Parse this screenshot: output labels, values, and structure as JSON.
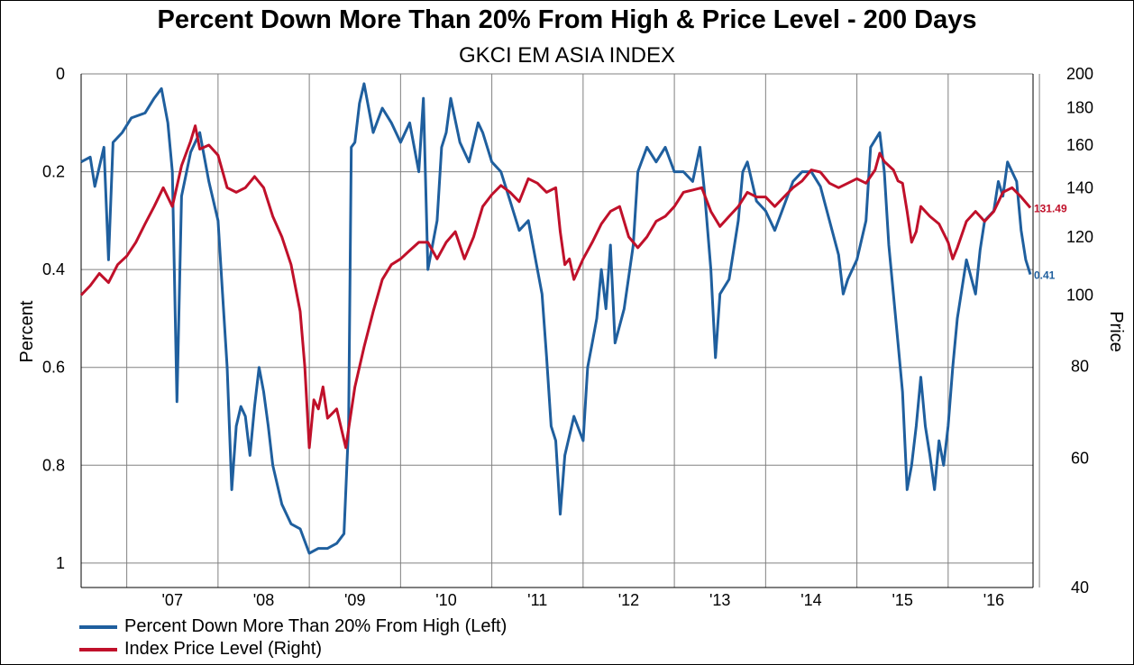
{
  "title": "Percent Down More Than 20% From High & Price Level - 200 Days",
  "subtitle": "GKCI EM ASIA INDEX",
  "colors": {
    "pct_series": "#1f5f9e",
    "price_series": "#c0102a",
    "grid": "#808080"
  },
  "chart_data": {
    "type": "line",
    "title": "Percent Down More Than 20% From High & Price Level - 200 Days",
    "subtitle": "GKCI EM ASIA INDEX",
    "ylabel": "Percent",
    "y2label": "Price",
    "ylim": [
      0,
      1.05
    ],
    "y_inverted": true,
    "y_ticks": [
      "0",
      "0.2",
      "0.4",
      "0.6",
      "0.8",
      "1"
    ],
    "y2_scale": "log",
    "y2lim": [
      40,
      200
    ],
    "y2_ticks": [
      "40",
      "60",
      "80",
      "100",
      "120",
      "140",
      "160",
      "180",
      "200"
    ],
    "x_ticks": [
      "'07",
      "'08",
      "'09",
      "'10",
      "'11",
      "'12",
      "'13",
      "'14",
      "'15",
      "'16"
    ],
    "xlim": [
      2006.5,
      2016.93
    ],
    "grid": true,
    "legend_position": "bottom-left",
    "series": [
      {
        "name": "Percent Down More Than 20% From High (Left)",
        "axis": "left",
        "end_label": "0.41",
        "points": [
          [
            2006.5,
            0.18
          ],
          [
            2006.6,
            0.17
          ],
          [
            2006.65,
            0.23
          ],
          [
            2006.75,
            0.15
          ],
          [
            2006.8,
            0.38
          ],
          [
            2006.85,
            0.14
          ],
          [
            2006.95,
            0.12
          ],
          [
            2007.05,
            0.09
          ],
          [
            2007.2,
            0.08
          ],
          [
            2007.3,
            0.05
          ],
          [
            2007.38,
            0.03
          ],
          [
            2007.45,
            0.1
          ],
          [
            2007.5,
            0.2
          ],
          [
            2007.55,
            0.67
          ],
          [
            2007.6,
            0.25
          ],
          [
            2007.7,
            0.16
          ],
          [
            2007.8,
            0.12
          ],
          [
            2007.9,
            0.22
          ],
          [
            2008.0,
            0.3
          ],
          [
            2008.05,
            0.45
          ],
          [
            2008.1,
            0.6
          ],
          [
            2008.15,
            0.85
          ],
          [
            2008.2,
            0.72
          ],
          [
            2008.25,
            0.68
          ],
          [
            2008.3,
            0.7
          ],
          [
            2008.35,
            0.78
          ],
          [
            2008.4,
            0.68
          ],
          [
            2008.45,
            0.6
          ],
          [
            2008.5,
            0.65
          ],
          [
            2008.55,
            0.72
          ],
          [
            2008.6,
            0.8
          ],
          [
            2008.7,
            0.88
          ],
          [
            2008.8,
            0.92
          ],
          [
            2008.9,
            0.93
          ],
          [
            2009.0,
            0.98
          ],
          [
            2009.1,
            0.97
          ],
          [
            2009.2,
            0.97
          ],
          [
            2009.3,
            0.96
          ],
          [
            2009.38,
            0.94
          ],
          [
            2009.43,
            0.72
          ],
          [
            2009.46,
            0.15
          ],
          [
            2009.5,
            0.14
          ],
          [
            2009.55,
            0.06
          ],
          [
            2009.6,
            0.02
          ],
          [
            2009.7,
            0.12
          ],
          [
            2009.8,
            0.07
          ],
          [
            2009.9,
            0.1
          ],
          [
            2010.0,
            0.14
          ],
          [
            2010.1,
            0.1
          ],
          [
            2010.2,
            0.2
          ],
          [
            2010.25,
            0.05
          ],
          [
            2010.3,
            0.4
          ],
          [
            2010.4,
            0.3
          ],
          [
            2010.45,
            0.15
          ],
          [
            2010.5,
            0.12
          ],
          [
            2010.55,
            0.05
          ],
          [
            2010.65,
            0.14
          ],
          [
            2010.75,
            0.18
          ],
          [
            2010.85,
            0.1
          ],
          [
            2010.9,
            0.12
          ],
          [
            2011.0,
            0.18
          ],
          [
            2011.1,
            0.2
          ],
          [
            2011.2,
            0.26
          ],
          [
            2011.3,
            0.32
          ],
          [
            2011.4,
            0.3
          ],
          [
            2011.5,
            0.4
          ],
          [
            2011.55,
            0.45
          ],
          [
            2011.6,
            0.58
          ],
          [
            2011.65,
            0.72
          ],
          [
            2011.7,
            0.75
          ],
          [
            2011.75,
            0.9
          ],
          [
            2011.8,
            0.78
          ],
          [
            2011.9,
            0.7
          ],
          [
            2012.0,
            0.75
          ],
          [
            2012.05,
            0.6
          ],
          [
            2012.1,
            0.55
          ],
          [
            2012.15,
            0.5
          ],
          [
            2012.2,
            0.4
          ],
          [
            2012.25,
            0.48
          ],
          [
            2012.3,
            0.35
          ],
          [
            2012.35,
            0.55
          ],
          [
            2012.45,
            0.48
          ],
          [
            2012.55,
            0.35
          ],
          [
            2012.6,
            0.2
          ],
          [
            2012.7,
            0.15
          ],
          [
            2012.8,
            0.18
          ],
          [
            2012.9,
            0.15
          ],
          [
            2013.0,
            0.2
          ],
          [
            2013.1,
            0.2
          ],
          [
            2013.2,
            0.22
          ],
          [
            2013.28,
            0.15
          ],
          [
            2013.33,
            0.24
          ],
          [
            2013.4,
            0.4
          ],
          [
            2013.45,
            0.58
          ],
          [
            2013.5,
            0.45
          ],
          [
            2013.6,
            0.42
          ],
          [
            2013.7,
            0.3
          ],
          [
            2013.75,
            0.2
          ],
          [
            2013.8,
            0.18
          ],
          [
            2013.9,
            0.26
          ],
          [
            2014.0,
            0.28
          ],
          [
            2014.1,
            0.32
          ],
          [
            2014.2,
            0.27
          ],
          [
            2014.3,
            0.22
          ],
          [
            2014.4,
            0.2
          ],
          [
            2014.5,
            0.2
          ],
          [
            2014.6,
            0.23
          ],
          [
            2014.7,
            0.3
          ],
          [
            2014.8,
            0.37
          ],
          [
            2014.85,
            0.45
          ],
          [
            2014.9,
            0.42
          ],
          [
            2015.0,
            0.38
          ],
          [
            2015.1,
            0.3
          ],
          [
            2015.15,
            0.15
          ],
          [
            2015.25,
            0.12
          ],
          [
            2015.3,
            0.2
          ],
          [
            2015.35,
            0.35
          ],
          [
            2015.45,
            0.55
          ],
          [
            2015.5,
            0.65
          ],
          [
            2015.55,
            0.85
          ],
          [
            2015.6,
            0.8
          ],
          [
            2015.65,
            0.72
          ],
          [
            2015.7,
            0.62
          ],
          [
            2015.75,
            0.72
          ],
          [
            2015.8,
            0.78
          ],
          [
            2015.85,
            0.85
          ],
          [
            2015.9,
            0.75
          ],
          [
            2015.95,
            0.8
          ],
          [
            2016.0,
            0.72
          ],
          [
            2016.05,
            0.6
          ],
          [
            2016.1,
            0.5
          ],
          [
            2016.2,
            0.38
          ],
          [
            2016.3,
            0.45
          ],
          [
            2016.35,
            0.36
          ],
          [
            2016.4,
            0.3
          ],
          [
            2016.5,
            0.28
          ],
          [
            2016.55,
            0.22
          ],
          [
            2016.6,
            0.25
          ],
          [
            2016.65,
            0.18
          ],
          [
            2016.7,
            0.2
          ],
          [
            2016.75,
            0.22
          ],
          [
            2016.8,
            0.32
          ],
          [
            2016.85,
            0.38
          ],
          [
            2016.9,
            0.41
          ]
        ]
      },
      {
        "name": "Index Price Level (Right)",
        "axis": "right",
        "end_label": "131.49",
        "points": [
          [
            2006.5,
            100
          ],
          [
            2006.6,
            103
          ],
          [
            2006.7,
            107
          ],
          [
            2006.8,
            104
          ],
          [
            2006.9,
            110
          ],
          [
            2007.0,
            113
          ],
          [
            2007.1,
            118
          ],
          [
            2007.2,
            125
          ],
          [
            2007.3,
            132
          ],
          [
            2007.4,
            140
          ],
          [
            2007.5,
            132
          ],
          [
            2007.6,
            150
          ],
          [
            2007.7,
            162
          ],
          [
            2007.75,
            170
          ],
          [
            2007.8,
            158
          ],
          [
            2007.9,
            160
          ],
          [
            2008.0,
            155
          ],
          [
            2008.1,
            140
          ],
          [
            2008.2,
            138
          ],
          [
            2008.3,
            140
          ],
          [
            2008.4,
            145
          ],
          [
            2008.5,
            140
          ],
          [
            2008.6,
            128
          ],
          [
            2008.7,
            120
          ],
          [
            2008.8,
            110
          ],
          [
            2008.9,
            95
          ],
          [
            2008.95,
            80
          ],
          [
            2009.0,
            62
          ],
          [
            2009.05,
            72
          ],
          [
            2009.1,
            70
          ],
          [
            2009.15,
            75
          ],
          [
            2009.2,
            68
          ],
          [
            2009.3,
            70
          ],
          [
            2009.4,
            62
          ],
          [
            2009.5,
            75
          ],
          [
            2009.6,
            85
          ],
          [
            2009.7,
            95
          ],
          [
            2009.8,
            105
          ],
          [
            2009.9,
            110
          ],
          [
            2010.0,
            112
          ],
          [
            2010.1,
            115
          ],
          [
            2010.2,
            118
          ],
          [
            2010.3,
            118
          ],
          [
            2010.4,
            112
          ],
          [
            2010.5,
            118
          ],
          [
            2010.6,
            122
          ],
          [
            2010.7,
            112
          ],
          [
            2010.8,
            120
          ],
          [
            2010.9,
            132
          ],
          [
            2011.0,
            137
          ],
          [
            2011.1,
            141
          ],
          [
            2011.2,
            138
          ],
          [
            2011.3,
            134
          ],
          [
            2011.4,
            144
          ],
          [
            2011.5,
            142
          ],
          [
            2011.6,
            138
          ],
          [
            2011.7,
            140
          ],
          [
            2011.75,
            122
          ],
          [
            2011.8,
            110
          ],
          [
            2011.85,
            112
          ],
          [
            2011.9,
            105
          ],
          [
            2012.0,
            112
          ],
          [
            2012.1,
            118
          ],
          [
            2012.2,
            125
          ],
          [
            2012.3,
            130
          ],
          [
            2012.4,
            132
          ],
          [
            2012.5,
            120
          ],
          [
            2012.6,
            116
          ],
          [
            2012.7,
            120
          ],
          [
            2012.8,
            126
          ],
          [
            2012.9,
            128
          ],
          [
            2013.0,
            132
          ],
          [
            2013.1,
            138
          ],
          [
            2013.2,
            139
          ],
          [
            2013.3,
            140
          ],
          [
            2013.4,
            130
          ],
          [
            2013.5,
            124
          ],
          [
            2013.6,
            128
          ],
          [
            2013.7,
            132
          ],
          [
            2013.8,
            138
          ],
          [
            2013.9,
            136
          ],
          [
            2014.0,
            136
          ],
          [
            2014.1,
            132
          ],
          [
            2014.2,
            136
          ],
          [
            2014.3,
            140
          ],
          [
            2014.4,
            143
          ],
          [
            2014.5,
            148
          ],
          [
            2014.6,
            147
          ],
          [
            2014.7,
            142
          ],
          [
            2014.8,
            140
          ],
          [
            2014.9,
            142
          ],
          [
            2015.0,
            144
          ],
          [
            2015.1,
            142
          ],
          [
            2015.2,
            148
          ],
          [
            2015.25,
            156
          ],
          [
            2015.3,
            152
          ],
          [
            2015.4,
            148
          ],
          [
            2015.45,
            143
          ],
          [
            2015.5,
            142
          ],
          [
            2015.55,
            130
          ],
          [
            2015.6,
            118
          ],
          [
            2015.65,
            122
          ],
          [
            2015.7,
            132
          ],
          [
            2015.8,
            128
          ],
          [
            2015.9,
            125
          ],
          [
            2016.0,
            118
          ],
          [
            2016.05,
            112
          ],
          [
            2016.1,
            116
          ],
          [
            2016.2,
            126
          ],
          [
            2016.3,
            130
          ],
          [
            2016.4,
            126
          ],
          [
            2016.5,
            130
          ],
          [
            2016.6,
            138
          ],
          [
            2016.7,
            140
          ],
          [
            2016.8,
            136
          ],
          [
            2016.9,
            131.49
          ]
        ]
      }
    ]
  }
}
